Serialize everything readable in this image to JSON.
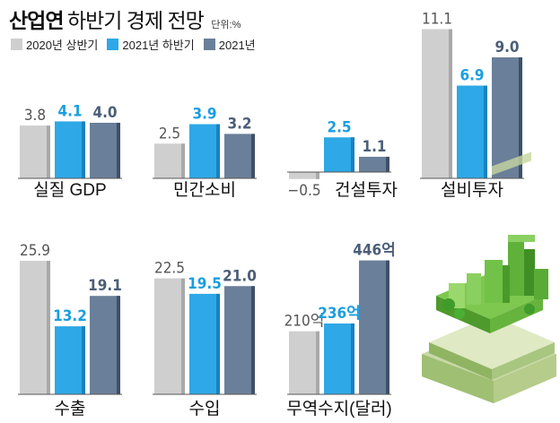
{
  "header": {
    "title_bold": "산업연",
    "title_light": "하반기 경제 전망",
    "unit": "단위:%"
  },
  "legend": [
    {
      "label": "2020년 상반기",
      "color": "#cfcfcf"
    },
    {
      "label": "2021년 하반기",
      "color": "#2ea8e6"
    },
    {
      "label": "2021년",
      "color": "#6a7f99"
    }
  ],
  "chart_data": {
    "type": "bar",
    "series": [
      {
        "name": "2020년 상반기",
        "color": "#cfcfcf"
      },
      {
        "name": "2021년 하반기",
        "color": "#2ea8e6"
      },
      {
        "name": "2021년",
        "color": "#6a7f99"
      }
    ],
    "groups": [
      {
        "category": "실질 GDP",
        "values": [
          3.8,
          4.1,
          4.0
        ],
        "labels": [
          "3.8",
          "4.1",
          "4.0"
        ]
      },
      {
        "category": "민간소비",
        "values": [
          2.5,
          3.9,
          3.2
        ],
        "labels": [
          "2.5",
          "3.9",
          "3.2"
        ]
      },
      {
        "category": "건설투자",
        "values": [
          -0.5,
          2.5,
          1.1
        ],
        "labels": [
          "−0.5",
          "2.5",
          "1.1"
        ]
      },
      {
        "category": "설비투자",
        "values": [
          11.1,
          6.9,
          9.0
        ],
        "labels": [
          "11.1",
          "6.9",
          "9.0"
        ]
      },
      {
        "category": "수출",
        "values": [
          25.9,
          13.2,
          19.1
        ],
        "labels": [
          "25.9",
          "13.2",
          "19.1"
        ]
      },
      {
        "category": "수입",
        "values": [
          22.5,
          19.5,
          21.0
        ],
        "labels": [
          "22.5",
          "19.5",
          "21.0"
        ]
      },
      {
        "category": "무역수지(달러)",
        "values": [
          210,
          236,
          446
        ],
        "labels": [
          "210억",
          "236억",
          "446억"
        ]
      }
    ]
  },
  "illustration": {
    "icon": "green-city-on-money-illustration"
  }
}
